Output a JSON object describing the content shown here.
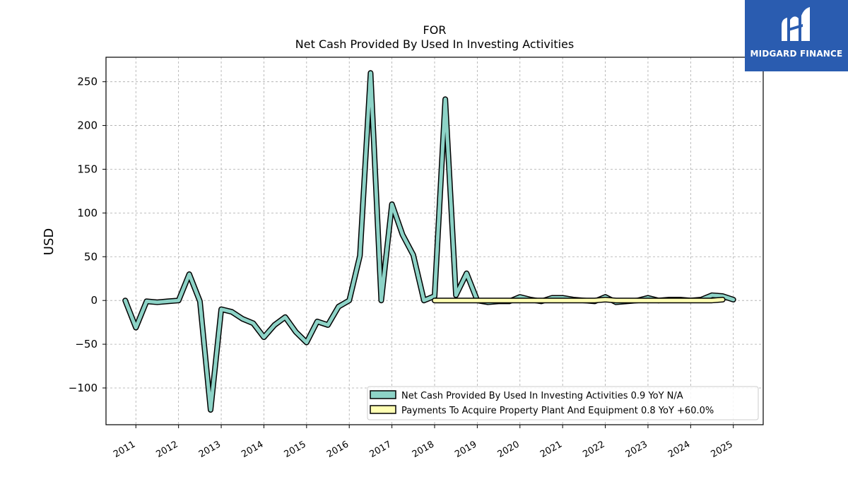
{
  "brand": {
    "name": "MIDGARD FINANCE",
    "bg_color": "#2a5cb0"
  },
  "chart_data": {
    "type": "line",
    "title": "FOR",
    "subtitle": "Net Cash Provided By Used In Investing Activities",
    "ylabel": "USD",
    "xlabel": "",
    "ylim": [
      -142,
      278
    ],
    "xlim": [
      2010.3,
      2025.7
    ],
    "yticks": [
      -100,
      -50,
      0,
      50,
      100,
      150,
      200,
      250
    ],
    "xticks": [
      "2011",
      "2012",
      "2013",
      "2014",
      "2015",
      "2016",
      "2017",
      "2018",
      "2019",
      "2020",
      "2021",
      "2022",
      "2023",
      "2024",
      "2025"
    ],
    "grid": true,
    "legend_position": "lower-right",
    "series": [
      {
        "name": "Net Cash Provided By Used In Investing Activities",
        "legend_label": "Net Cash Provided By Used In Investing Activities  0.9 YoY N/A",
        "color": "#8dd3c7",
        "points": [
          [
            2010.75,
            0
          ],
          [
            2011.0,
            -31
          ],
          [
            2011.25,
            -1
          ],
          [
            2011.5,
            -2
          ],
          [
            2011.75,
            -1
          ],
          [
            2012.0,
            0
          ],
          [
            2012.25,
            30
          ],
          [
            2012.5,
            -1
          ],
          [
            2012.75,
            -125
          ],
          [
            2013.0,
            -10
          ],
          [
            2013.25,
            -13
          ],
          [
            2013.5,
            -21
          ],
          [
            2013.75,
            -26
          ],
          [
            2014.0,
            -42
          ],
          [
            2014.25,
            -28
          ],
          [
            2014.5,
            -19
          ],
          [
            2014.75,
            -36
          ],
          [
            2015.0,
            -48
          ],
          [
            2015.25,
            -24
          ],
          [
            2015.5,
            -28
          ],
          [
            2015.75,
            -7
          ],
          [
            2016.0,
            0
          ],
          [
            2016.25,
            51
          ],
          [
            2016.5,
            260
          ],
          [
            2016.75,
            0
          ],
          [
            2017.0,
            110
          ],
          [
            2017.25,
            75
          ],
          [
            2017.5,
            52
          ],
          [
            2017.75,
            0
          ],
          [
            2018.0,
            5
          ],
          [
            2018.25,
            230
          ],
          [
            2018.5,
            6
          ],
          [
            2018.75,
            31
          ],
          [
            2019.0,
            0
          ],
          [
            2019.25,
            -2
          ],
          [
            2019.5,
            -1
          ],
          [
            2019.75,
            -1
          ],
          [
            2020.0,
            4
          ],
          [
            2020.25,
            1
          ],
          [
            2020.5,
            -1
          ],
          [
            2020.75,
            3
          ],
          [
            2021.0,
            3
          ],
          [
            2021.25,
            1
          ],
          [
            2021.5,
            0
          ],
          [
            2021.75,
            -1
          ],
          [
            2022.0,
            4
          ],
          [
            2022.25,
            -2
          ],
          [
            2022.5,
            -1
          ],
          [
            2022.75,
            0
          ],
          [
            2023.0,
            3
          ],
          [
            2023.25,
            0
          ],
          [
            2023.5,
            1
          ],
          [
            2023.75,
            1
          ],
          [
            2024.0,
            0
          ],
          [
            2024.25,
            1
          ],
          [
            2024.5,
            6
          ],
          [
            2024.75,
            5
          ],
          [
            2025.0,
            1
          ]
        ]
      },
      {
        "name": "Payments To Acquire Property Plant And Equipment",
        "legend_label": "Payments To Acquire Property Plant And Equipment  0.8 YoY +60.0%",
        "color": "#ffffb3",
        "points": [
          [
            2018.0,
            0
          ],
          [
            2018.25,
            0
          ],
          [
            2018.5,
            0
          ],
          [
            2018.75,
            0
          ],
          [
            2019.0,
            0
          ],
          [
            2019.25,
            0
          ],
          [
            2019.5,
            0
          ],
          [
            2019.75,
            0
          ],
          [
            2020.0,
            0
          ],
          [
            2020.25,
            0
          ],
          [
            2020.5,
            0
          ],
          [
            2020.75,
            0
          ],
          [
            2021.0,
            0
          ],
          [
            2021.25,
            0
          ],
          [
            2021.5,
            0
          ],
          [
            2021.75,
            0
          ],
          [
            2022.0,
            1
          ],
          [
            2022.25,
            0
          ],
          [
            2022.5,
            0
          ],
          [
            2022.75,
            0
          ],
          [
            2023.0,
            0
          ],
          [
            2023.25,
            0
          ],
          [
            2023.5,
            0
          ],
          [
            2023.75,
            0
          ],
          [
            2024.0,
            0
          ],
          [
            2024.25,
            0
          ],
          [
            2024.5,
            0
          ],
          [
            2024.75,
            1
          ]
        ]
      }
    ]
  }
}
